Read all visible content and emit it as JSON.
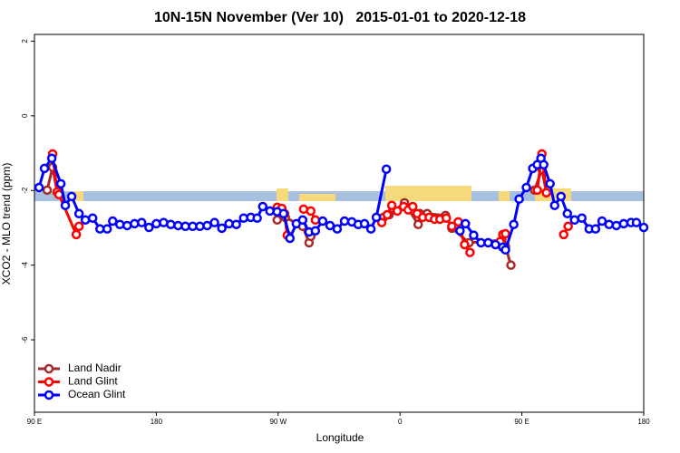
{
  "chart_data": {
    "type": "line",
    "title": "10N-15N November (Ver 10)   2015-01-01 to 2020-12-18",
    "x_label": "Longitude",
    "y_label": "XCO2 - MLO trend (ppm)",
    "xlim": [
      90,
      540
    ],
    "ylim": [
      -7.94,
      2.18
    ],
    "xticks": [
      {
        "value": 90,
        "label": "90 E"
      },
      {
        "value": 180,
        "label": "180"
      },
      {
        "value": 270,
        "label": "90 W"
      },
      {
        "value": 360,
        "label": "0"
      },
      {
        "value": 450,
        "label": "90 E"
      },
      {
        "value": 540,
        "label": "180"
      }
    ],
    "yticks": [
      -6,
      -4,
      -2,
      0,
      2
    ],
    "legend": "bottom-left",
    "series": [
      {
        "name": "Land Nadir",
        "color": "#a52a2a",
        "x": [
          99.4,
          103.4,
          106.8,
          null,
          269.3,
          273.3,
          275.3,
          288.1,
          292.8,
          294.1,
          null,
          347.8,
          351.9,
          363.3,
          373.4,
          374.7,
          380.1,
          393.6,
          398.3,
          411.0,
          435.2,
          437.9,
          441.9,
          null,
          459.4,
          464.8,
          468.1
        ],
        "values": [
          -1.99,
          -1.38,
          -2.04,
          null,
          -2.79,
          -2.65,
          -2.72,
          -2.96,
          -3.4,
          -3.23,
          null,
          -2.72,
          -2.65,
          -2.33,
          -2.91,
          -2.62,
          -2.62,
          -2.67,
          -3.01,
          -3.4,
          -3.33,
          -3.5,
          -4.0,
          null,
          -1.99,
          -1.43,
          -2.06
        ]
      },
      {
        "name": "Land Glint",
        "color": "#ff0000",
        "x": [
          103.4,
          106.8,
          108.1,
          120.9,
          122.9,
          null,
          269.3,
          272.7,
          274.7,
          276.7,
          null,
          288.8,
          294.1,
          297.5,
          null,
          346.5,
          350.6,
          353.9,
          358.0,
          362.7,
          366.0,
          369.4,
          372.7,
          376.8,
          381.5,
          385.5,
          389.5,
          394.2,
          398.3,
          403.0,
          407.7,
          411.7,
          null,
          433.9,
          435.9,
          437.9,
          null,
          461.4,
          464.8,
          468.1,
          null,
          480.9,
          484.2
        ],
        "values": [
          -1.02,
          -2.04,
          -2.11,
          -3.18,
          -2.96,
          null,
          -2.45,
          -2.48,
          -2.62,
          -3.2,
          null,
          -2.5,
          -2.55,
          -2.79,
          null,
          -2.86,
          -2.65,
          -2.4,
          -2.55,
          -2.43,
          -2.52,
          -2.43,
          -2.62,
          -2.72,
          -2.72,
          -2.77,
          -2.77,
          -2.74,
          -2.96,
          -2.84,
          -3.45,
          -3.66,
          null,
          -3.37,
          -3.18,
          -3.16,
          null,
          -1.99,
          -1.02,
          -2.06,
          null,
          -3.18,
          -2.96
        ]
      },
      {
        "name": "Ocean Glint",
        "color": "#0000ff",
        "x": [
          93.4,
          97.4,
          102.8,
          109.5,
          112.8,
          117.5,
          122.9,
          127.6,
          133.0,
          138.4,
          143.7,
          147.8,
          153.1,
          158.5,
          163.9,
          169.2,
          174.6,
          180.0,
          185.4,
          190.7,
          196.1,
          201.5,
          206.9,
          212.2,
          217.6,
          223.0,
          228.4,
          233.7,
          239.1,
          244.5,
          249.8,
          254.5,
          258.6,
          263.9,
          269.3,
          274.0,
          278.7,
          283.4,
          288.1,
          292.8,
          297.5,
          302.9,
          308.3,
          313.6,
          319.0,
          324.4,
          329.1,
          333.8,
          338.5,
          342.5,
          349.9,
          null,
          404.3,
          408.3,
          414.4,
          419.8,
          425.1,
          430.5,
          435.9,
          437.9,
          444.0,
          448.0,
          453.3,
          458.0,
          461.4,
          464.1,
          466.1,
          470.8,
          474.2,
          478.9,
          483.6,
          488.9,
          494.3,
          499.7,
          504.4,
          509.2,
          514.4,
          519.8,
          525.2,
          530.6,
          534.6,
          540.0
        ],
        "values": [
          -1.92,
          -1.41,
          -1.14,
          -1.82,
          -2.4,
          -2.16,
          -2.62,
          -2.79,
          -2.74,
          -3.03,
          -3.03,
          -2.82,
          -2.91,
          -2.94,
          -2.89,
          -2.86,
          -2.99,
          -2.89,
          -2.86,
          -2.91,
          -2.94,
          -2.96,
          -2.96,
          -2.96,
          -2.94,
          -2.86,
          -3.01,
          -2.89,
          -2.91,
          -2.74,
          -2.72,
          -2.74,
          -2.43,
          -2.55,
          -2.57,
          -2.62,
          -3.28,
          -2.89,
          -2.79,
          -3.11,
          -3.08,
          -2.82,
          -2.94,
          -3.03,
          -2.82,
          -2.84,
          -2.91,
          -2.89,
          -3.03,
          -2.72,
          -1.43,
          null,
          -3.08,
          -2.89,
          -3.2,
          -3.4,
          -3.4,
          -3.45,
          -3.52,
          -3.59,
          -2.91,
          -2.23,
          -1.92,
          -1.41,
          -1.31,
          -1.14,
          -1.31,
          -1.82,
          -2.4,
          -2.16,
          -2.62,
          -2.79,
          -2.74,
          -3.03,
          -3.03,
          -2.82,
          -2.91,
          -2.94,
          -2.89,
          -2.86,
          -2.86,
          -2.99
        ]
      }
    ]
  }
}
